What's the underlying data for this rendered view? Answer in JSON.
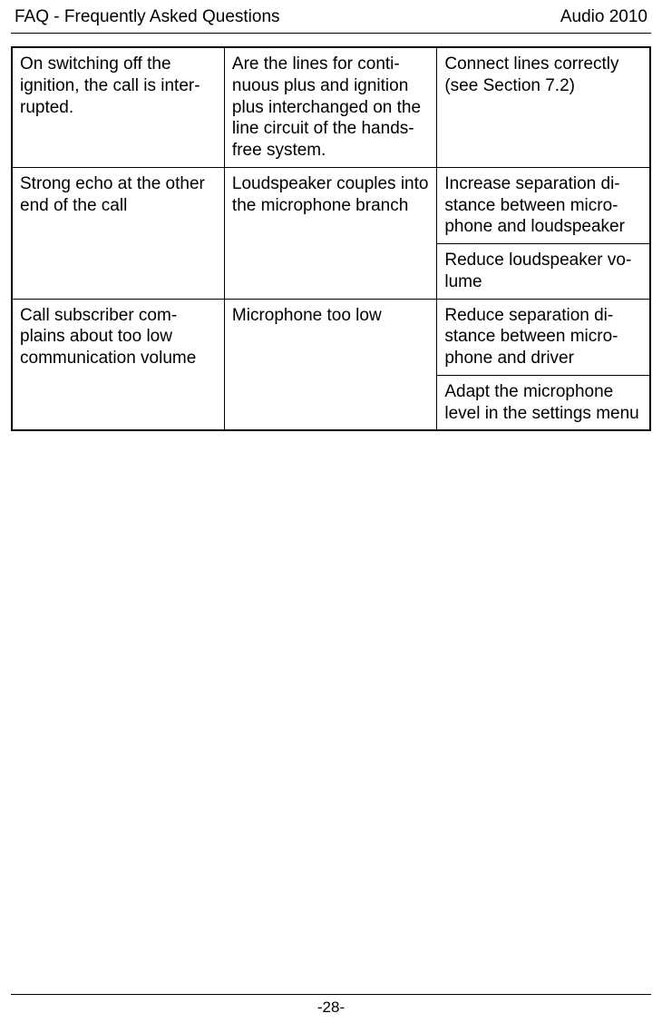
{
  "header": {
    "left": "FAQ - Frequently Asked Questions",
    "right": "Audio 2010"
  },
  "table": {
    "rows": [
      {
        "c1": "On switching off the ignition, the call is inter-rupted.",
        "c2": "Are the lines for conti-nuous plus and ignition plus interchanged on the line circuit of the hands-free system.",
        "c3a": "Connect lines correctly (see Section 7.2)"
      },
      {
        "c1": "Strong echo at the other end of the call",
        "c2": "Loudspeaker couples into the microphone branch",
        "c3a": "Increase separation di-stance between micro-phone and loudspeaker",
        "c3b": "Reduce loudspeaker vo-lume"
      },
      {
        "c1": "Call subscriber com-plains about too low communication volume",
        "c2": "Microphone too low",
        "c3a": "Reduce separation di-stance between micro-phone and driver",
        "c3b": "Adapt the microphone level in the settings menu"
      }
    ]
  },
  "footer": {
    "page": "-28-"
  }
}
